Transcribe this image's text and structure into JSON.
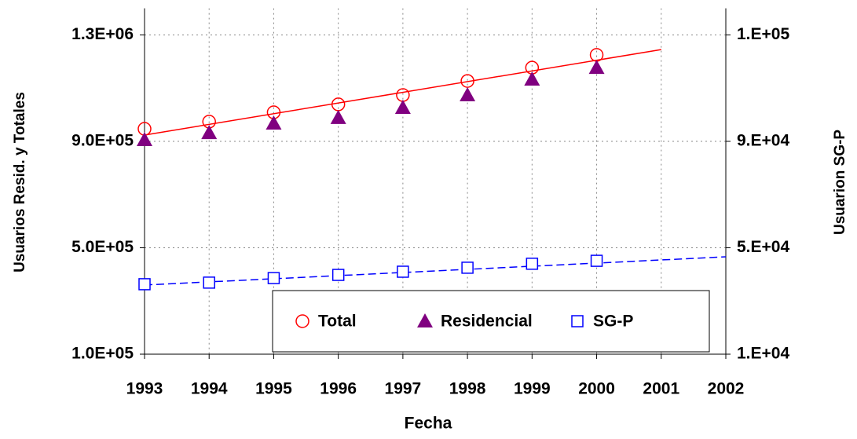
{
  "chart_data": {
    "type": "line",
    "x": [
      1993,
      1994,
      1995,
      1996,
      1997,
      1998,
      1999,
      2000
    ],
    "xlabel": "Fecha",
    "ylabel": "Usuarios Resid. y Totales",
    "y2label": "Usuarion SG-P",
    "xlim": [
      1993,
      2002
    ],
    "xticks": [
      1993,
      1994,
      1995,
      1996,
      1997,
      1998,
      1999,
      2000,
      2001,
      2002
    ],
    "ylim": [
      100000,
      1400000
    ],
    "yticks": [
      {
        "value": 100000,
        "label": "1.0E+05"
      },
      {
        "value": 500000,
        "label": "5.0E+05"
      },
      {
        "value": 900000,
        "label": "9.0E+05"
      },
      {
        "value": 1300000,
        "label": "1.3E+06"
      }
    ],
    "y2lim": [
      10000,
      140000
    ],
    "y2ticks": [
      {
        "value": 10000,
        "label": "1.E+04"
      },
      {
        "value": 50000,
        "label": "5.E+04"
      },
      {
        "value": 90000,
        "label": "9.E+04"
      },
      {
        "value": 130000,
        "label": "1.E+05"
      }
    ],
    "grid": true,
    "legend": "bottom-right",
    "series": [
      {
        "name": "Total",
        "color": "#ff0000",
        "marker": "circle",
        "values": [
          947000,
          974000,
          1009000,
          1039000,
          1074000,
          1127000,
          1177000,
          1225000
        ],
        "trend": {
          "x": [
            1993,
            2001
          ],
          "values": [
            923600,
            1245000
          ],
          "dash": false
        }
      },
      {
        "name": "Residencial",
        "color": "#800080",
        "marker": "triangle",
        "values": [
          906000,
          932000,
          968000,
          989000,
          1027000,
          1074000,
          1133000,
          1177000
        ]
      },
      {
        "name": "SG-P",
        "color": "#0000ff",
        "marker": "square",
        "axis": "y2",
        "values": [
          36300,
          36900,
          38600,
          39800,
          41000,
          42500,
          44000,
          45100
        ],
        "trend": {
          "x": [
            1993,
            2002
          ],
          "values": [
            36000,
            46600
          ],
          "dash": true
        }
      }
    ]
  }
}
